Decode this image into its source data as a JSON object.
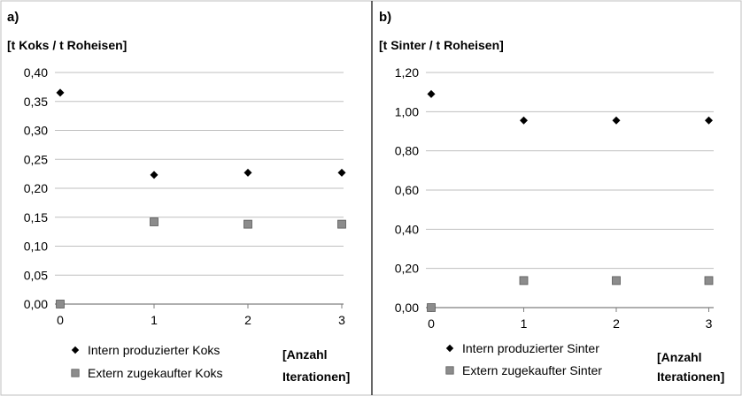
{
  "chart_data": [
    {
      "type": "scatter",
      "panel": "a)",
      "ylabel": "[t Koks / t Roheisen]",
      "xlabel": "[Anzahl Iterationen]",
      "ylim": [
        0,
        0.4
      ],
      "ytick_labels": [
        "0,00",
        "0,05",
        "0,10",
        "0,15",
        "0,20",
        "0,25",
        "0,30",
        "0,35",
        "0,40"
      ],
      "xtick_labels": [
        "0",
        "1",
        "2",
        "3"
      ],
      "grid": true,
      "legend_position": "bottom",
      "series": [
        {
          "name": "Intern produzierter Koks",
          "marker": "diamond",
          "color": "#000000",
          "x": [
            0,
            1,
            2,
            3
          ],
          "y": [
            0.365,
            0.223,
            0.227,
            0.227
          ]
        },
        {
          "name": "Extern zugekaufter Koks",
          "marker": "square",
          "color": "#8c8c8c",
          "x": [
            0,
            1,
            2,
            3
          ],
          "y": [
            0.0,
            0.142,
            0.138,
            0.138
          ]
        }
      ]
    },
    {
      "type": "scatter",
      "panel": "b)",
      "ylabel": "[t Sinter / t Roheisen]",
      "xlabel": "[Anzahl Iterationen]",
      "ylim": [
        0,
        1.2
      ],
      "ytick_labels": [
        "0,00",
        "0,20",
        "0,40",
        "0,60",
        "0,80",
        "1,00",
        "1,20"
      ],
      "xtick_labels": [
        "0",
        "1",
        "2",
        "3"
      ],
      "grid": true,
      "legend_position": "bottom",
      "series": [
        {
          "name": "Intern produzierter Sinter",
          "marker": "diamond",
          "color": "#000000",
          "x": [
            0,
            1,
            2,
            3
          ],
          "y": [
            1.09,
            0.955,
            0.955,
            0.955
          ]
        },
        {
          "name": "Extern zugekaufter Sinter",
          "marker": "square",
          "color": "#8c8c8c",
          "x": [
            0,
            1,
            2,
            3
          ],
          "y": [
            0.0,
            0.138,
            0.138,
            0.138
          ]
        }
      ]
    }
  ]
}
